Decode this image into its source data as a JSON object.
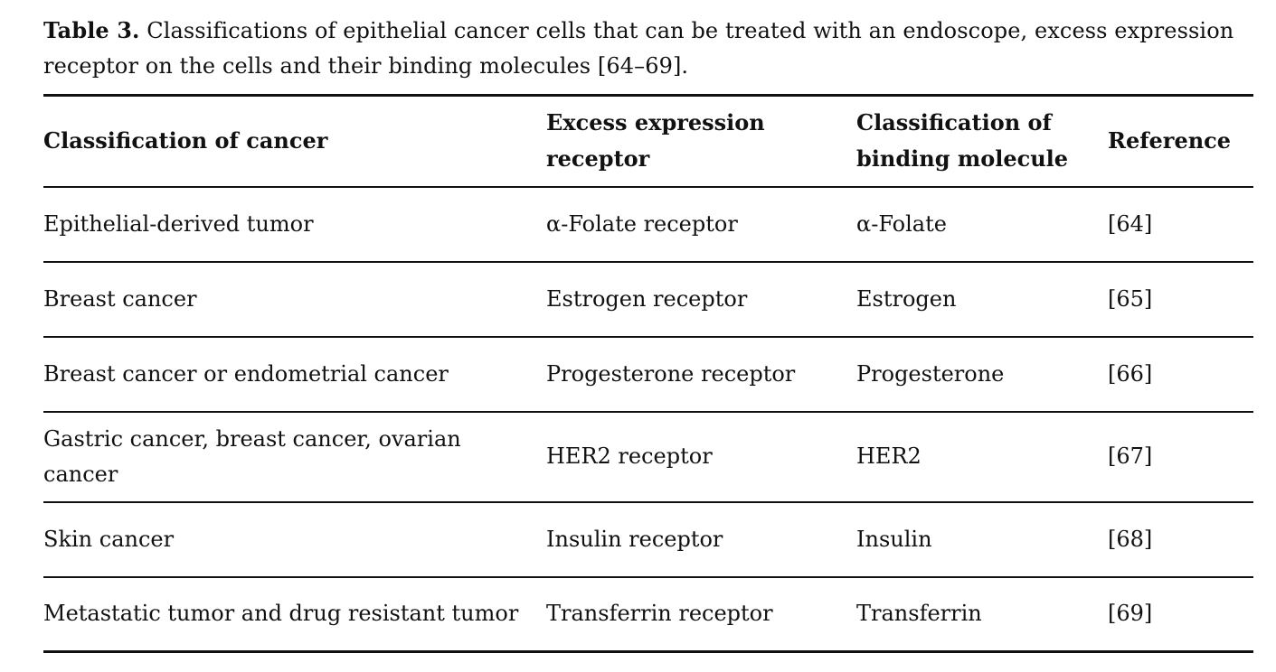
{
  "caption": {
    "label": "Table 3.",
    "text": " Classifications of epithelial cancer cells that can be treated with an endoscope, excess expression receptor on the cells and their binding molecules [64–69]."
  },
  "table": {
    "headers": [
      "Classification of cancer",
      "Excess expression receptor",
      "Classification of binding molecule",
      "Reference"
    ],
    "rows": [
      [
        "Epithelial-derived tumor",
        "α-Folate receptor",
        "α-Folate",
        "[64]"
      ],
      [
        "Breast cancer",
        "Estrogen receptor",
        "Estrogen",
        "[65]"
      ],
      [
        "Breast cancer or endometrial cancer",
        "Progesterone receptor",
        "Progesterone",
        "[66]"
      ],
      [
        "Gastric cancer, breast cancer, ovarian cancer",
        "HER2 receptor",
        "HER2",
        "[67]"
      ],
      [
        "Skin cancer",
        "Insulin receptor",
        "Insulin",
        "[68]"
      ],
      [
        "Metastatic tumor and drug resistant tumor",
        "Transferrin receptor",
        "Transferrin",
        "[69]"
      ]
    ]
  }
}
